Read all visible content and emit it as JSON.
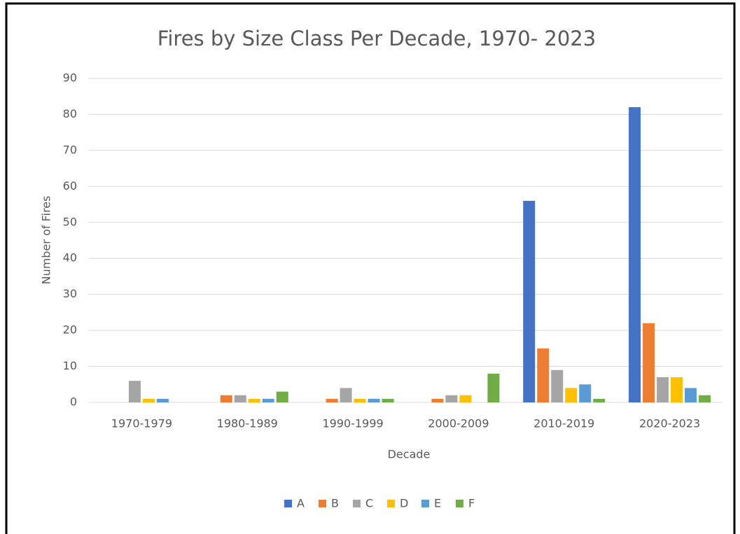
{
  "chart_data": {
    "type": "bar",
    "title": "Fires by Size Class Per Decade, 1970- 2023",
    "x_label": "Decade",
    "y_label": "Number of Fires",
    "categories": [
      "1970-1979",
      "1980-1989",
      "1990-1999",
      "2000-2009",
      "2010-2019",
      "2020-2023"
    ],
    "series": [
      {
        "name": "A",
        "color": "#4472c4",
        "values": [
          0,
          0,
          0,
          0,
          56,
          82
        ]
      },
      {
        "name": "B",
        "color": "#ed7d31",
        "values": [
          0,
          2,
          1,
          1,
          15,
          22
        ]
      },
      {
        "name": "C",
        "color": "#a5a5a5",
        "values": [
          6,
          2,
          4,
          2,
          9,
          7
        ]
      },
      {
        "name": "D",
        "color": "#ffc000",
        "values": [
          1,
          1,
          1,
          2,
          4,
          7
        ]
      },
      {
        "name": "E",
        "color": "#5b9bd5",
        "values": [
          1,
          1,
          1,
          0,
          5,
          4
        ]
      },
      {
        "name": "F",
        "color": "#70ad47",
        "values": [
          0,
          3,
          1,
          8,
          1,
          2
        ]
      }
    ],
    "ylim": [
      0,
      90
    ],
    "yticks": [
      0,
      10,
      20,
      30,
      40,
      50,
      60,
      70,
      80,
      90
    ],
    "grid": true,
    "legend": "bottom"
  }
}
